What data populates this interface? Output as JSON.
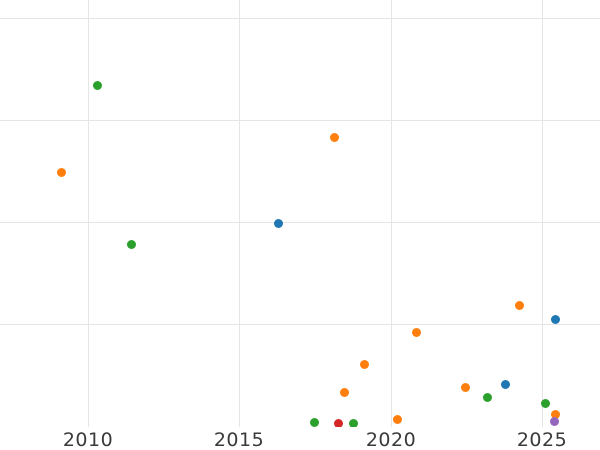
{
  "chart_data": {
    "type": "scatter",
    "title": "",
    "xlabel": "",
    "ylabel": "",
    "x_tick_labels": [
      "2010",
      "2015",
      "2020",
      "2025"
    ],
    "x_tick_years": [
      2010,
      2015,
      2020,
      2025
    ],
    "x_range": [
      2007.1,
      2026.9
    ],
    "y_axis_note": "y tick labels are cropped out of view; values below are in gridline units (1 unit = one horizontal gridline interval, 0 = plot bottom)",
    "y_gridline_values": [
      1,
      2,
      3,
      4
    ],
    "y_range_units": [
      -0.01,
      4.18
    ],
    "grid": true,
    "legend": false,
    "series": [
      {
        "name": "blue",
        "color": "#1f77b4",
        "points": [
          [
            2016.31,
            1.99
          ],
          [
            2023.78,
            0.41
          ],
          [
            2025.46,
            1.04
          ]
        ]
      },
      {
        "name": "orange",
        "color": "#ff7f0e",
        "points": [
          [
            2009.11,
            2.49
          ],
          [
            2018.13,
            2.83
          ],
          [
            2018.46,
            0.33
          ],
          [
            2019.12,
            0.6
          ],
          [
            2020.24,
            0.06
          ],
          [
            2020.84,
            0.92
          ],
          [
            2022.46,
            0.38
          ],
          [
            2024.27,
            1.18
          ],
          [
            2025.46,
            0.11
          ]
        ]
      },
      {
        "name": "green",
        "color": "#2ca02c",
        "points": [
          [
            2010.33,
            3.34
          ],
          [
            2011.45,
            1.78
          ],
          [
            2017.47,
            0.03
          ],
          [
            2018.76,
            0.02
          ],
          [
            2023.21,
            0.28
          ],
          [
            2025.13,
            0.22
          ]
        ]
      },
      {
        "name": "red",
        "color": "#d62728",
        "points": [
          [
            2018.29,
            0.02
          ]
        ]
      },
      {
        "name": "purple",
        "color": "#9467bd",
        "points": [
          [
            2025.4,
            0.04
          ]
        ]
      }
    ],
    "style": {
      "grid_color": "#e5e5e5",
      "tick_label_color": "#3a3a3a",
      "background": "#ffffff",
      "marker_diameter_px": 9
    }
  }
}
